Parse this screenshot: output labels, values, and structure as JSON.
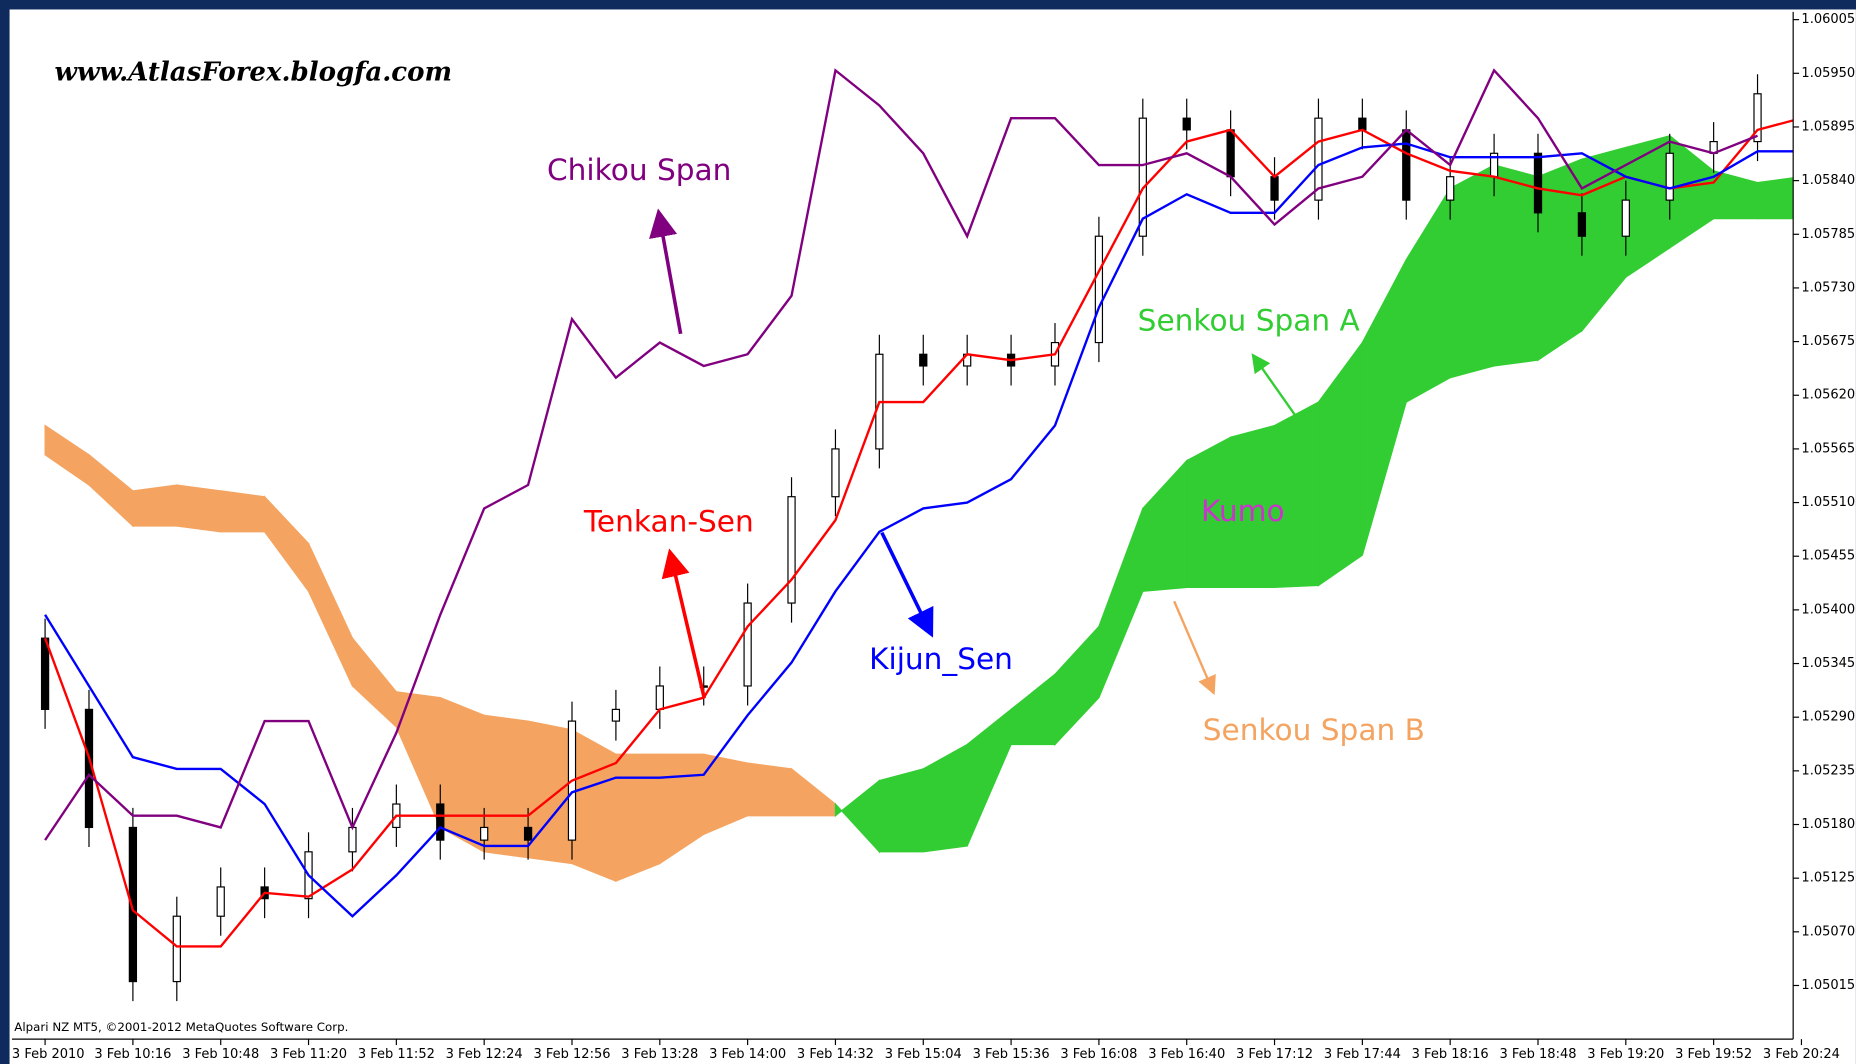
{
  "chart_data": {
    "type": "ichimoku",
    "watermark": "www.AtlasForex.blogfa.com",
    "copyright": "Alpari NZ MT5, ©2001-2012 MetaQuotes Software Corp.",
    "categories": [
      "3 Feb 2010",
      null,
      "3 Feb 10:16",
      null,
      "3 Feb 10:48",
      null,
      "3 Feb 11:20",
      null,
      "3 Feb 11:52",
      null,
      "3 Feb 12:24",
      null,
      "3 Feb 12:56",
      null,
      "3 Feb 13:28",
      null,
      "3 Feb 14:00",
      null,
      "3 Feb 14:32",
      null,
      "3 Feb 15:04",
      null,
      "3 Feb 15:36",
      null,
      "3 Feb 16:08",
      null,
      "3 Feb 16:40",
      null,
      "3 Feb 17:12",
      null,
      "3 Feb 17:44",
      null,
      "3 Feb 18:16",
      null,
      "3 Feb 18:48",
      null,
      "3 Feb 19:20",
      null,
      "3 Feb 19:52",
      null,
      "3 Feb 20:24"
    ],
    "ylim": [
      1.0496,
      1.06013
    ],
    "yticks": [
      1.05015,
      {
        "value": 1.0507,
        "label": "1.05070"
      },
      1.05125,
      {
        "value": 1.0518,
        "label": "1.05180"
      },
      1.05235,
      {
        "value": 1.0529,
        "label": "1.05290"
      },
      1.05345,
      {
        "value": 1.054,
        "label": "1.05400"
      },
      1.05455,
      {
        "value": 1.0551,
        "label": "1.05510"
      },
      1.05565,
      {
        "value": 1.0562,
        "label": "1.05620"
      },
      1.05675,
      {
        "value": 1.0573,
        "label": "1.05730"
      },
      1.05785,
      {
        "value": 1.0584,
        "label": "1.05840"
      },
      1.05895,
      {
        "value": 1.0595,
        "label": "1.05950"
      },
      1.06005
    ],
    "candles": {
      "open": [
        1.05371,
        1.05298,
        1.05177,
        1.05019,
        1.05086,
        1.05116,
        1.05104,
        1.05152,
        1.05177,
        1.05201,
        1.05164,
        1.05177,
        1.05164,
        1.05286,
        1.05298,
        1.05322,
        1.05322,
        1.05407,
        1.05516,
        1.05565,
        1.05662,
        1.0565,
        1.05662,
        1.0565,
        1.05674,
        1.05783,
        1.05904,
        1.05892,
        1.05844,
        1.0582,
        1.05904,
        1.05892,
        1.0582,
        1.05844,
        1.05868,
        1.05807,
        1.05783,
        1.0582,
        1.05868,
        1.0588,
        1.05929
      ],
      "high": [
        1.05391,
        1.05318,
        1.05197,
        1.05106,
        1.05136,
        1.05136,
        1.05172,
        1.05197,
        1.05221,
        1.05221,
        1.05197,
        1.05197,
        1.05306,
        1.05318,
        1.05342,
        1.05342,
        1.05427,
        1.05536,
        1.05585,
        1.05682,
        1.05682,
        1.05682,
        1.05682,
        1.05694,
        1.05803,
        1.05924,
        1.05924,
        1.05912,
        1.05864,
        1.05924,
        1.05924,
        1.05912,
        1.05864,
        1.05888,
        1.05888,
        1.05827,
        1.0584,
        1.05888,
        1.059,
        1.05949,
        1.05949
      ],
      "low": [
        1.05278,
        1.05157,
        1.04999,
        1.04999,
        1.05066,
        1.05084,
        1.05084,
        1.05132,
        1.05157,
        1.05144,
        1.05144,
        1.05144,
        1.05144,
        1.05266,
        1.05278,
        1.05302,
        1.05302,
        1.05387,
        1.05496,
        1.05545,
        1.0563,
        1.0563,
        1.0563,
        1.0563,
        1.05654,
        1.05763,
        1.05872,
        1.05824,
        1.058,
        1.058,
        1.05872,
        1.058,
        1.058,
        1.05824,
        1.05787,
        1.05763,
        1.05763,
        1.058,
        1.05848,
        1.0586,
        1.05884
      ],
      "close": [
        1.05298,
        1.05177,
        1.05019,
        1.05086,
        1.05116,
        1.05104,
        1.05152,
        1.05177,
        1.05201,
        1.05164,
        1.05177,
        1.05164,
        1.05286,
        1.05298,
        1.05322,
        1.05322,
        1.05407,
        1.05516,
        1.05565,
        1.05662,
        1.0565,
        1.05662,
        1.0565,
        1.05674,
        1.05783,
        1.05904,
        1.05892,
        1.05844,
        1.0582,
        1.05904,
        1.05892,
        1.0582,
        1.05844,
        1.05868,
        1.05807,
        1.05783,
        1.0582,
        1.05868,
        1.0588,
        1.05929,
        1.05904
      ]
    },
    "series": [
      {
        "name": "Tenkan-Sen",
        "color": "#ff0000",
        "values": [
          1.05371,
          1.05249,
          1.05092,
          1.05055,
          1.05055,
          1.0511,
          1.05106,
          1.05134,
          1.05189,
          1.05189,
          1.05189,
          1.05189,
          1.05225,
          1.05243,
          1.05298,
          1.0531,
          1.05383,
          1.05431,
          1.05492,
          1.05613,
          1.05613,
          1.05662,
          1.05656,
          1.05662,
          1.05747,
          1.05832,
          1.0588,
          1.05892,
          1.05844,
          1.0588,
          1.05892,
          1.05868,
          1.0585,
          1.05844,
          1.05832,
          1.05825,
          1.05844,
          1.05832,
          1.05838,
          1.05892,
          1.05904
        ]
      },
      {
        "name": "Kijun_Sen",
        "color": "#0000ff",
        "values": [
          1.05395,
          1.05322,
          1.05249,
          1.05237,
          1.05237,
          1.05201,
          1.05128,
          1.05086,
          1.05128,
          1.05177,
          1.05158,
          1.05158,
          1.05213,
          1.05228,
          1.05228,
          1.05231,
          1.05292,
          1.05346,
          1.05419,
          1.0548,
          1.05504,
          1.0551,
          1.05534,
          1.05589,
          1.0571,
          1.05801,
          1.05826,
          1.05807,
          1.05807,
          1.05856,
          1.05874,
          1.05878,
          1.05864,
          1.05864,
          1.05864,
          1.05868,
          1.05844,
          1.05832,
          1.05844,
          1.0587,
          1.0587
        ]
      },
      {
        "name": "Chikou Span",
        "color": "#800080",
        "values": [
          1.05164,
          1.05231,
          1.05189,
          1.05189,
          1.05177,
          1.05286,
          1.05286,
          1.05177,
          1.05274,
          1.05395,
          1.05504,
          1.05528,
          1.05698,
          1.05638,
          1.05674,
          1.0565,
          1.05662,
          1.05722,
          1.05953,
          1.05917,
          1.05868,
          1.05783,
          1.05904,
          1.05904,
          1.05856,
          1.05856,
          1.05868,
          1.05844,
          1.05795,
          1.05832,
          1.05844,
          1.05892,
          1.05856,
          1.05953,
          1.05904,
          1.05832,
          1.05856,
          1.0588,
          1.05868,
          1.05886,
          null
        ]
      },
      {
        "name": "Senkou Span A",
        "color": "#32cd32",
        "values": [
          1.05559,
          1.05528,
          1.05486,
          1.05486,
          1.0548,
          1.0548,
          1.05419,
          1.05322,
          1.0528,
          1.05177,
          1.05152,
          1.05146,
          1.0514,
          1.05122,
          1.0514,
          1.0517,
          1.05189,
          1.05189,
          1.05189,
          1.05225,
          1.05237,
          1.05262,
          1.05298,
          1.05334,
          1.05383,
          1.05504,
          1.05553,
          1.05577,
          1.05589,
          1.05613,
          1.05674,
          1.05759,
          1.05832,
          1.05856,
          1.05844,
          1.05862,
          1.05874,
          1.05886,
          1.0585,
          1.05838,
          1.05844
        ]
      },
      {
        "name": "Senkou Span B",
        "color": "#f4a460",
        "values": [
          1.05589,
          1.05559,
          1.05522,
          1.05528,
          1.05522,
          1.05516,
          1.05468,
          1.05371,
          1.05316,
          1.0531,
          1.05292,
          1.05286,
          1.05277,
          1.05252,
          1.05252,
          1.05252,
          1.05243,
          1.05237,
          1.05201,
          1.05152,
          1.05152,
          1.05158,
          1.05262,
          1.05262,
          1.0531,
          1.05419,
          1.05423,
          1.05423,
          1.05423,
          1.05425,
          1.05456,
          1.05613,
          1.05638,
          1.0565,
          1.05656,
          1.05686,
          1.05741,
          1.05771,
          1.05801,
          1.05801,
          1.05801
        ]
      }
    ],
    "annotations": [
      {
        "text": "Chikou Span",
        "color": "#800080"
      },
      {
        "text": "Tenkan-Sen",
        "color": "#ff0000"
      },
      {
        "text": "Kijun_Sen",
        "color": "#0000ff"
      },
      {
        "text": "Senkou Span A",
        "color": "#32cd32"
      },
      {
        "text": "Kumo",
        "color": "#cc33cc"
      },
      {
        "text": "Senkou Span B",
        "color": "#f4a460"
      }
    ]
  }
}
